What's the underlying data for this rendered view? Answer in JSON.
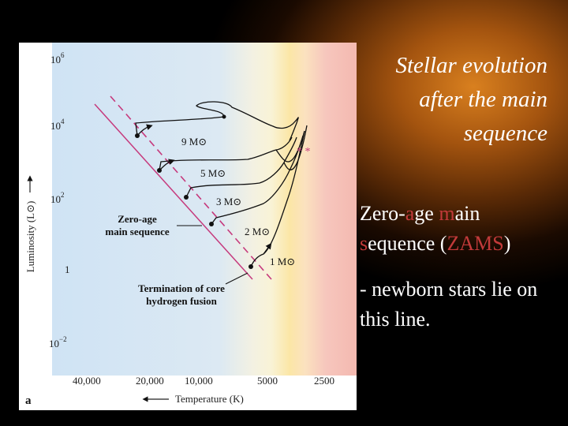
{
  "slide": {
    "title_lines": [
      "Stellar evolution",
      "after the main",
      "sequence"
    ],
    "zams": {
      "parts": [
        {
          "t": "Zero-",
          "hl": false
        },
        {
          "t": "a",
          "hl": true
        },
        {
          "t": "ge ",
          "hl": false
        },
        {
          "t": "m",
          "hl": true
        },
        {
          "t": "ain",
          "hl": false
        },
        {
          "t": "s",
          "hl": true
        },
        {
          "t": "equence (",
          "hl": false
        },
        {
          "t": "ZAMS",
          "hl": true
        },
        {
          "t": ")",
          "hl": false
        }
      ]
    },
    "note": "- newborn stars lie on this line.",
    "accent_color": "#c23a3a"
  },
  "figure": {
    "panel_label": "a",
    "y_axis_label": "Luminosity (L⊙)",
    "x_axis_label": "Temperature (K)",
    "y_ticks": [
      {
        "base": "10",
        "exp": "6"
      },
      {
        "base": "10",
        "exp": "4"
      },
      {
        "base": "10",
        "exp": "2"
      },
      {
        "base": "1",
        "exp": ""
      },
      {
        "base": "10",
        "exp": "−2"
      }
    ],
    "x_ticks": [
      "40,000",
      "20,000",
      "10,000",
      "5000",
      "2500"
    ],
    "mass_labels": [
      "9 M⊙",
      "5 M⊙",
      "3 M⊙",
      "2 M⊙",
      "1 M⊙"
    ],
    "zams_label": [
      "Zero-age",
      "main sequence"
    ],
    "tams_label": [
      "Termination of core",
      "hydrogen fusion"
    ],
    "stars": "* *",
    "colors": {
      "blue": "#cfe3f4",
      "cream": "#f9f3d6",
      "yellow": "#fbe6a6",
      "red": "#f6c6bd",
      "zams_line": "#c63a7d",
      "track": "#111111"
    }
  }
}
